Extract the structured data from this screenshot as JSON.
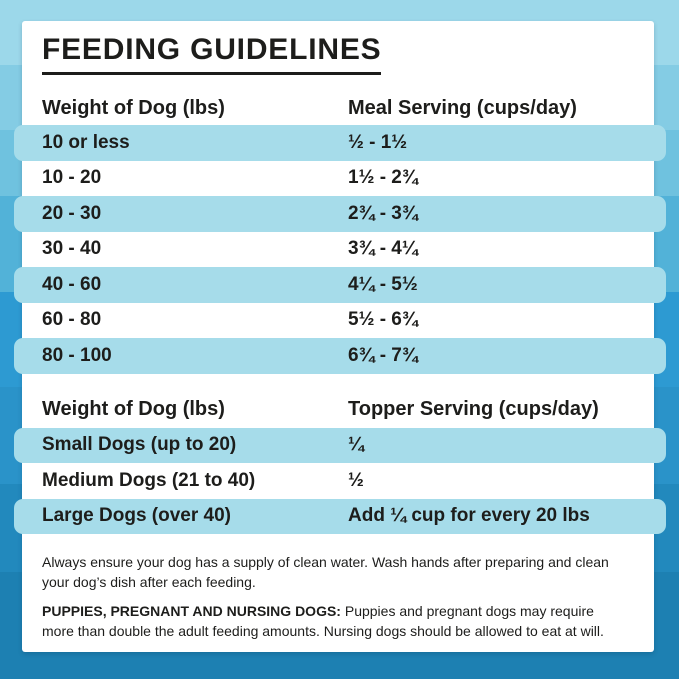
{
  "title": "FEEDING GUIDELINES",
  "meal_table": {
    "col1_header": "Weight of Dog (lbs)",
    "col2_header": "Meal Serving (cups/day)",
    "rows": [
      {
        "weight": "10 or less",
        "serving": "½ - 1½",
        "highlight": true
      },
      {
        "weight": "10 - 20",
        "serving": "1½ - 2¾",
        "highlight": false
      },
      {
        "weight": "20 - 30",
        "serving": "2¾ - 3¾",
        "highlight": true
      },
      {
        "weight": "30 - 40",
        "serving": "3¾ - 4¼",
        "highlight": false
      },
      {
        "weight": "40 - 60",
        "serving": "4¼ - 5½",
        "highlight": true
      },
      {
        "weight": "60 - 80",
        "serving": "5½ - 6¾",
        "highlight": false
      },
      {
        "weight": "80 - 100",
        "serving": "6¾ - 7¾",
        "highlight": true
      }
    ]
  },
  "topper_table": {
    "col1_header": "Weight of Dog (lbs)",
    "col2_header": "Topper Serving (cups/day)",
    "rows": [
      {
        "weight": "Small Dogs (up to 20)",
        "serving": "¼",
        "highlight": true
      },
      {
        "weight": "Medium Dogs (21 to 40)",
        "serving": "½",
        "highlight": false
      },
      {
        "weight": "Large Dogs (over 40)",
        "serving": "Add ¼ cup for every 20 lbs",
        "highlight": true
      }
    ]
  },
  "notes": {
    "water_note": "Always ensure your dog has a supply of clean water. Wash hands after preparing and clean your dog’s dish after each feeding.",
    "puppies_label": "PUPPIES, PREGNANT AND NURSING DOGS:",
    "puppies_note": " Puppies and pregnant dogs may require more than double the adult feeding amounts. Nursing dogs should be allowed to eat at will."
  },
  "colors": {
    "text": "#1d1d1b",
    "card_bg": "#ffffff",
    "highlight_row": "#a6dcea",
    "background_bands": [
      {
        "color": "#9cd8ea",
        "to": 65
      },
      {
        "color": "#84cce4",
        "to": 130
      },
      {
        "color": "#6fc2df",
        "to": 196
      },
      {
        "color": "#52b2d8",
        "to": 292
      },
      {
        "color": "#2d9ad2",
        "to": 387
      },
      {
        "color": "#2a93c9",
        "to": 484
      },
      {
        "color": "#2289bd",
        "to": 572
      },
      {
        "color": "#1d80b2",
        "to": 679
      }
    ]
  }
}
